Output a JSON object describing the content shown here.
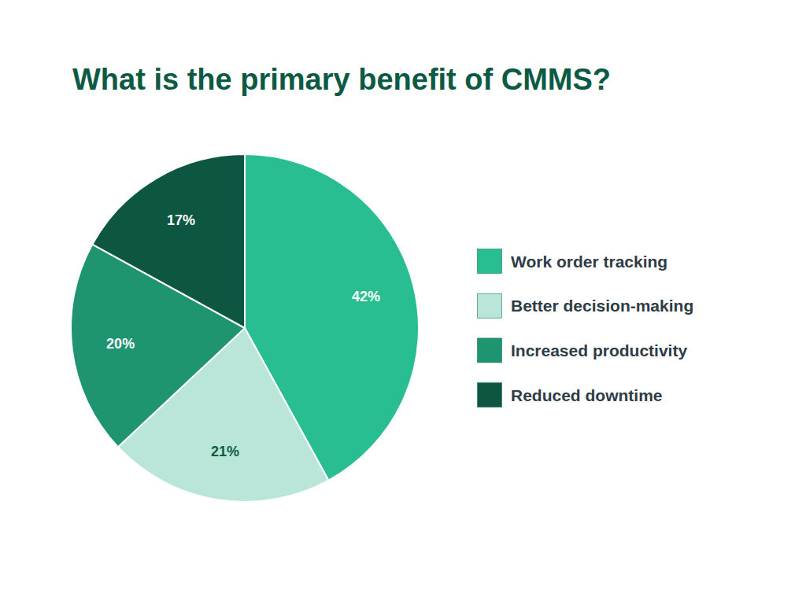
{
  "chart_data": {
    "type": "pie",
    "title": "What is the primary benefit of CMMS?",
    "categories": [
      "Work order tracking",
      "Better decision-making",
      "Increased productivity",
      "Reduced downtime"
    ],
    "values": [
      42,
      21,
      20,
      17
    ],
    "value_labels": [
      "42%",
      "21%",
      "20%",
      "17%"
    ],
    "colors": [
      "#28be92",
      "#b9e6d9",
      "#1e9470",
      "#0d5642"
    ],
    "data_labels": true,
    "legend": "right"
  }
}
